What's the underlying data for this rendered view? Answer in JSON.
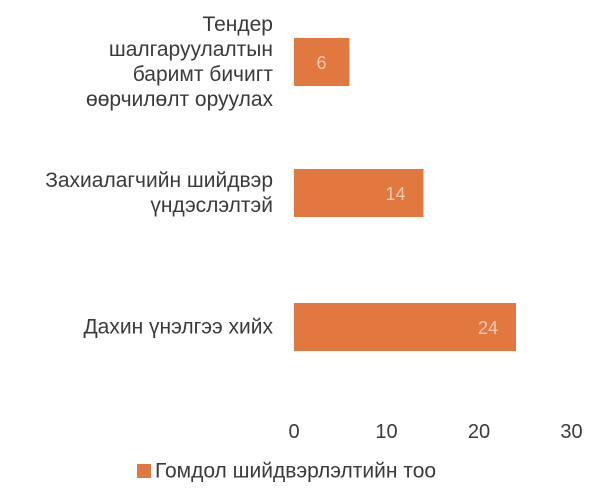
{
  "chart_data": {
    "type": "bar",
    "orientation": "horizontal",
    "categories": [
      [
        "Тендер",
        "шалгаруулалтын",
        "баримт бичигт",
        "өөрчилөлт оруулах"
      ],
      [
        "Захиалагчийн шийдвэр",
        "үндэслэлтэй"
      ],
      [
        "Дахин үнэлгээ хийх"
      ]
    ],
    "series": [
      {
        "name": "Гомдол шийдвэрлэлтийн тоо",
        "values": [
          6,
          14,
          24
        ],
        "color": "#e07840"
      }
    ],
    "xlim": [
      0,
      30
    ],
    "xticks": [
      0,
      10,
      20,
      30
    ],
    "grid": false,
    "legend_position": "bottom",
    "data_labels": true,
    "title": "",
    "xlabel": "",
    "ylabel": ""
  }
}
